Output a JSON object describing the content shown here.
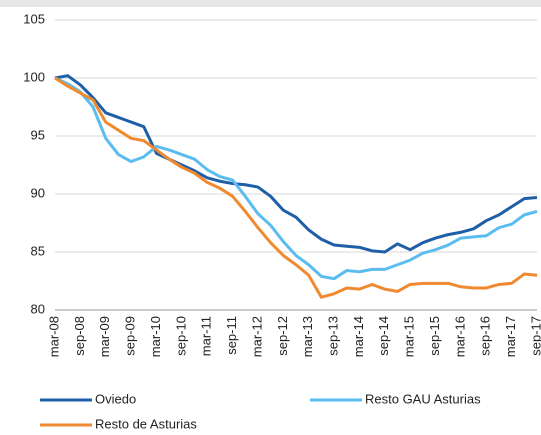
{
  "chart_data": {
    "type": "line",
    "categories": [
      "mar-08",
      null,
      "sep-08",
      null,
      "mar-09",
      null,
      "sep-09",
      null,
      "mar-10",
      null,
      "sep-10",
      null,
      "mar-11",
      null,
      "sep-11",
      null,
      "mar-12",
      null,
      "sep-12",
      null,
      "mar-13",
      null,
      "sep-13",
      null,
      "mar-14",
      null,
      "sep-14",
      null,
      "mar-15",
      null,
      "sep-15",
      null,
      "mar-16",
      null,
      "sep-16",
      null,
      "mar-17",
      null,
      "sep-17"
    ],
    "series": [
      {
        "name": "Oviedo",
        "color": "#1f5fa8",
        "values": [
          100,
          100.2,
          99.4,
          98.3,
          97.0,
          96.6,
          96.2,
          95.8,
          93.5,
          93.0,
          92.5,
          92.0,
          91.4,
          91.1,
          90.9,
          90.8,
          90.6,
          89.8,
          88.6,
          88.0,
          86.9,
          86.1,
          85.6,
          85.5,
          85.4,
          85.1,
          85.0,
          85.7,
          85.2,
          85.8,
          86.2,
          86.5,
          86.7,
          87.0,
          87.7,
          88.2,
          88.9,
          89.6,
          89.7
        ]
      },
      {
        "name": "Resto GAU Asturias",
        "color": "#5bbcf0",
        "values": [
          100,
          99.5,
          98.8,
          97.5,
          94.8,
          93.4,
          92.8,
          93.2,
          94.1,
          93.8,
          93.4,
          93.0,
          92.1,
          91.5,
          91.2,
          89.8,
          88.3,
          87.3,
          85.9,
          84.7,
          83.9,
          82.9,
          82.7,
          83.4,
          83.3,
          83.5,
          83.5,
          83.9,
          84.3,
          84.9,
          85.2,
          85.6,
          86.2,
          86.3,
          86.4,
          87.1,
          87.4,
          88.2,
          88.5
        ]
      },
      {
        "name": "Resto de Asturias",
        "color": "#f08a30",
        "values": [
          100,
          99.3,
          98.7,
          98.1,
          96.2,
          95.5,
          94.8,
          94.6,
          93.8,
          93.0,
          92.3,
          91.8,
          91.0,
          90.5,
          89.8,
          88.5,
          87.1,
          85.8,
          84.7,
          83.9,
          83.0,
          81.1,
          81.4,
          81.9,
          81.8,
          82.2,
          81.8,
          81.6,
          82.2,
          82.3,
          82.3,
          82.3,
          82.0,
          81.9,
          81.9,
          82.2,
          82.3,
          83.1,
          83.0
        ]
      }
    ],
    "ylim": [
      80,
      105
    ],
    "yticks": [
      80,
      85,
      90,
      95,
      100,
      105
    ],
    "grid": true
  }
}
